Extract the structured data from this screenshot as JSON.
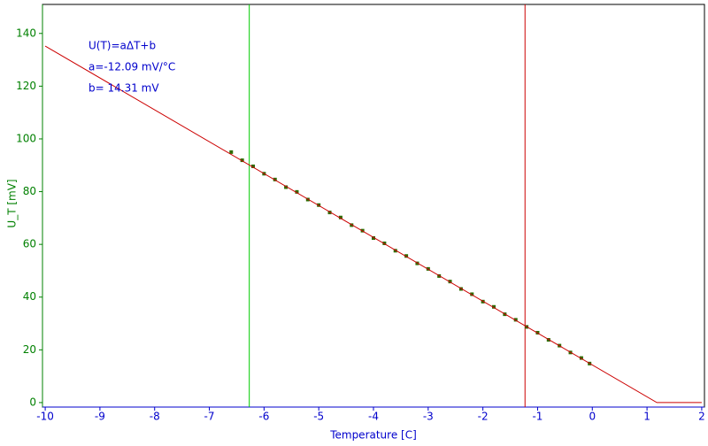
{
  "chart_data": {
    "type": "scatter",
    "x_label": "Temperature [C]",
    "y_label": "U_T [mV]",
    "annotations": [
      "U(T)=aΔT+b",
      "a=-12.09 mV/°C",
      "b= 14.31 mV"
    ],
    "xlim": [
      -10.05,
      2.05
    ],
    "ylim": [
      -1.7,
      151
    ],
    "xticks": [
      -10,
      -9,
      -8,
      -7,
      -6,
      -5,
      -4,
      -3,
      -2,
      -1,
      0,
      1,
      2
    ],
    "yticks": [
      0,
      20,
      40,
      60,
      80,
      100,
      120,
      140
    ],
    "cursors": [
      {
        "x": -6.27,
        "color": "#00cc00"
      },
      {
        "x": -1.23,
        "color": "#cc0000"
      }
    ],
    "series": [
      {
        "kind": "points",
        "color": "#2e6b00",
        "x": [
          -6.6,
          -6.4,
          -6.2,
          -6.0,
          -5.8,
          -5.6,
          -5.4,
          -5.2,
          -5.0,
          -4.8,
          -4.6,
          -4.4,
          -4.2,
          -4.0,
          -3.8,
          -3.6,
          -3.4,
          -3.2,
          -3.0,
          -2.8,
          -2.6,
          -2.4,
          -2.2,
          -2.0,
          -1.8,
          -1.6,
          -1.4,
          -1.2,
          -1.0,
          -0.8,
          -0.6,
          -0.4,
          -0.2,
          -0.05
        ],
        "values": [
          95.0,
          91.9,
          89.6,
          86.8,
          84.6,
          81.7,
          79.9,
          77.0,
          74.9,
          72.1,
          70.2,
          67.3,
          65.2,
          62.4,
          60.4,
          57.6,
          55.6,
          52.8,
          50.7,
          48.0,
          45.9,
          43.1,
          41.1,
          38.3,
          36.3,
          33.5,
          31.4,
          28.7,
          26.5,
          23.8,
          21.6,
          19.0,
          16.9,
          14.8
        ]
      },
      {
        "kind": "line",
        "color": "#cc0000",
        "x": [
          -10,
          1.18,
          2
        ],
        "values": [
          135.21,
          0,
          0
        ]
      }
    ]
  }
}
